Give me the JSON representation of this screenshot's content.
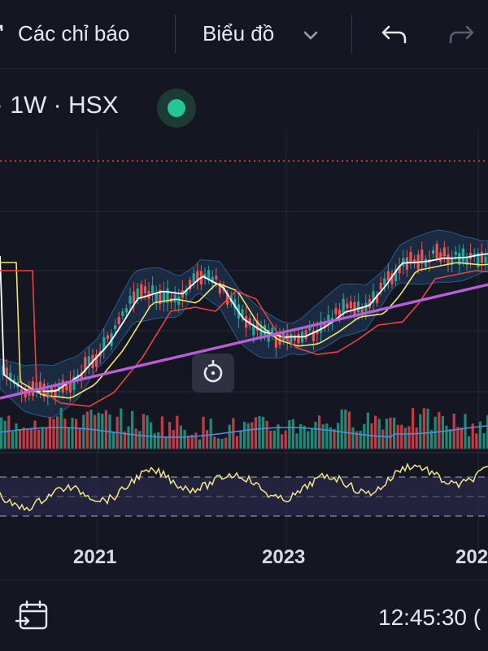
{
  "toolbar": {
    "indicators_label": "Các chỉ báo",
    "chart_type_label": "Biểu đồ",
    "icons": [
      "indicator-icon",
      "chevron-down-icon",
      "undo-icon",
      "redo-icon"
    ]
  },
  "symbol_bar": {
    "text": "· 1W · HSX",
    "status_color": "#26c694"
  },
  "chart_data": {
    "type": "line",
    "x_tick_labels": [
      "2021",
      "2023",
      "202"
    ],
    "log_scale": false,
    "grid": true,
    "series": [
      {
        "type": "candlestick",
        "color_up": "#26a69a",
        "color_down": "#ef5350"
      },
      {
        "type": "ma-short",
        "color": "#ffffff"
      },
      {
        "type": "ma-medium",
        "color": "#f0e56b"
      },
      {
        "type": "ma-long",
        "color": "#e8433f"
      },
      {
        "type": "ma-200",
        "color": "#b85ed8"
      },
      {
        "type": "volume",
        "color_up": "#1f8a78",
        "color_down": "#c23c47",
        "ma_color": "#4a8fd9"
      },
      {
        "type": "rsi",
        "color": "#f0e68c"
      }
    ]
  },
  "reset_icon": "rotate-icon",
  "footer": {
    "time": "12:45:30 (",
    "calendar_icon": "calendar-goto-icon"
  },
  "colors": {
    "background": "#141721",
    "grid": "#232836",
    "up": "#26a69a",
    "down": "#ef5350",
    "accent_green": "#26c694",
    "dotted_line": "#e8433f"
  }
}
